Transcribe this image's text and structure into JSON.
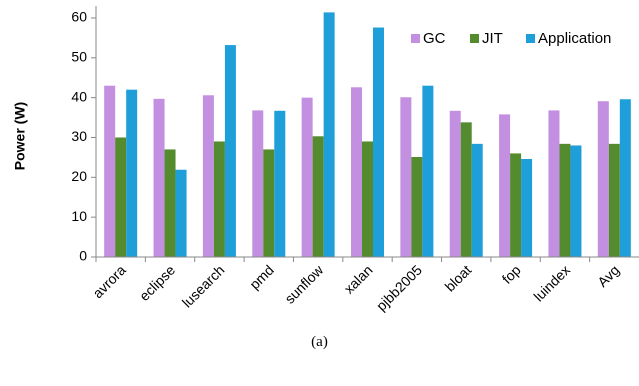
{
  "caption": "(a)",
  "chart_data": {
    "type": "bar",
    "title": "",
    "xlabel": "",
    "ylabel": "Power (W)",
    "ylim": [
      0,
      62
    ],
    "yticks": [
      0,
      10,
      20,
      30,
      40,
      50,
      60
    ],
    "grid": false,
    "legend_position": "top-right",
    "categories": [
      "avrora",
      "eclipse",
      "lusearch",
      "pmd",
      "sunflow",
      "xalan",
      "pjbb2005",
      "bloat",
      "fop",
      "luindex",
      "Avg"
    ],
    "series": [
      {
        "name": "GC",
        "color": "#c38fe0",
        "values": [
          43.0,
          39.7,
          40.6,
          36.8,
          40.0,
          42.6,
          40.1,
          36.7,
          35.8,
          36.8,
          39.1
        ]
      },
      {
        "name": "JIT",
        "color": "#558b2f",
        "values": [
          30.0,
          27.0,
          29.0,
          27.0,
          30.3,
          29.0,
          25.1,
          33.8,
          26.0,
          28.4,
          28.4
        ]
      },
      {
        "name": "Application",
        "color": "#1e9fd9",
        "values": [
          42.0,
          21.9,
          53.2,
          36.7,
          61.4,
          57.6,
          43.0,
          28.4,
          24.6,
          28.0,
          39.6
        ]
      }
    ]
  }
}
